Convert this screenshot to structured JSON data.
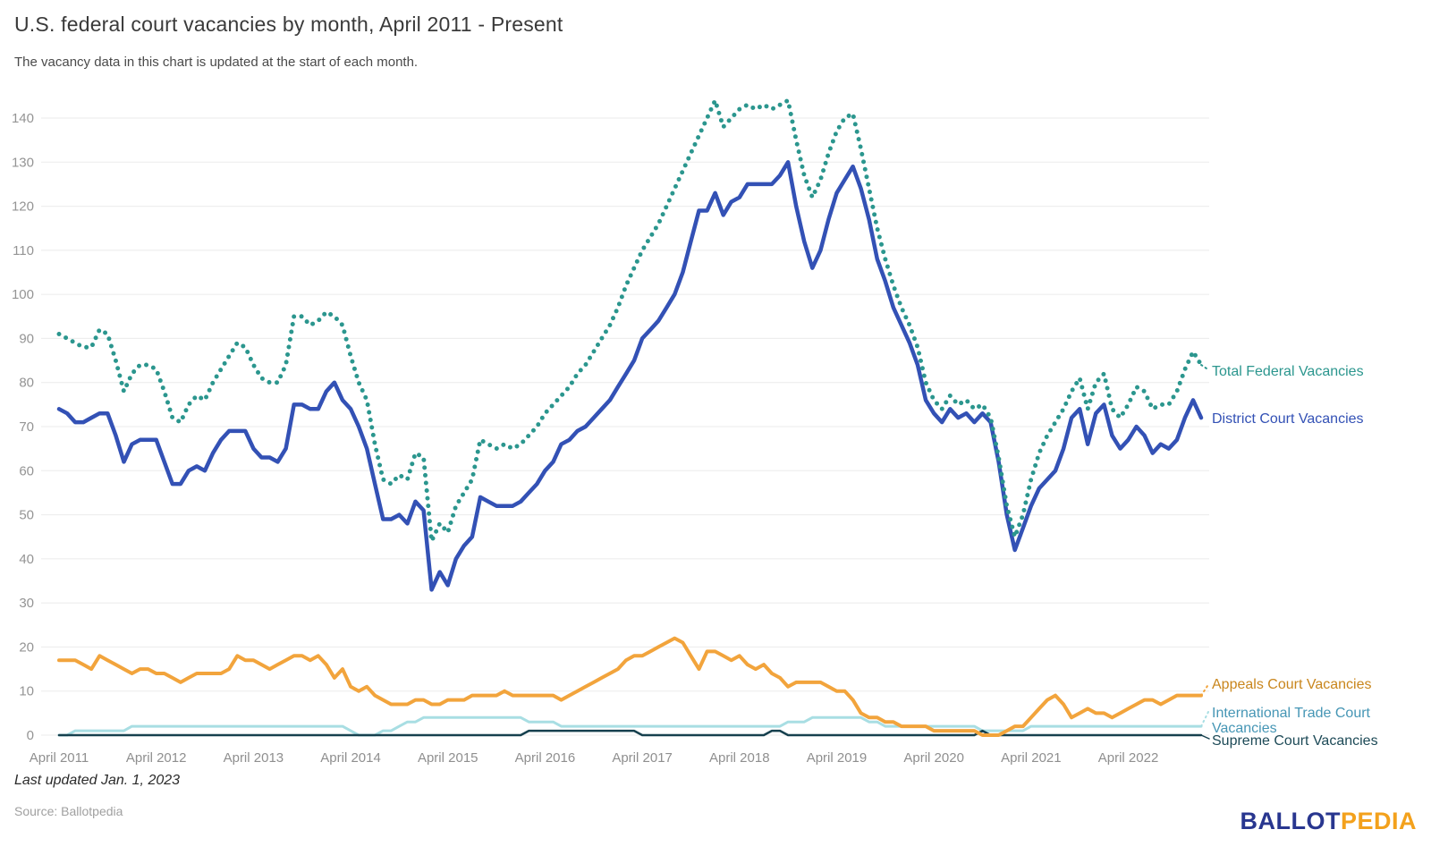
{
  "header": {
    "title": "U.S. federal court vacancies by month, April 2011 - Present",
    "subtitle": "The vacancy data in this chart is updated at the start of each month."
  },
  "footer": {
    "last_updated": "Last updated Jan. 1, 2023",
    "source": "Source: Ballotpedia",
    "logo": {
      "part1": "BALLOT",
      "part2": "PEDIA"
    }
  },
  "chart_data": {
    "type": "line",
    "title": "U.S. federal court vacancies by month, April 2011 - Present",
    "x_start": "April 2011",
    "x_end": "January 2023",
    "x_interval": "monthly",
    "x_tick_labels": [
      "April 2011",
      "April 2012",
      "April 2013",
      "April 2014",
      "April 2015",
      "April 2016",
      "April 2017",
      "April 2018",
      "April 2019",
      "April 2020",
      "April 2021",
      "April 2022"
    ],
    "y_ticks": [
      0,
      10,
      20,
      30,
      40,
      50,
      60,
      70,
      80,
      90,
      100,
      110,
      120,
      130,
      140
    ],
    "ylim": [
      0,
      145
    ],
    "grid": "horizontal",
    "legend_position": "right-of-line-ends",
    "colors": {
      "total": "#2b968e",
      "district": "#3351b5",
      "appeals": "#f2a43c",
      "appeals_label": "#c9861d",
      "itc_line": "#a8dee3",
      "itc_label": "#4696b5",
      "supreme": "#16404e",
      "gridline": "#ebebeb",
      "tick_text": "#949494"
    },
    "series": [
      {
        "name": "Total Federal Vacancies",
        "style": "dotted",
        "color": "#2b968e",
        "values": [
          91,
          90,
          89,
          88,
          88,
          92,
          91,
          85,
          78,
          82,
          84,
          84,
          83,
          78,
          72,
          71,
          75,
          77,
          76,
          80,
          83,
          86,
          89,
          88,
          84,
          81,
          80,
          80,
          84,
          95,
          95,
          93,
          94,
          96,
          95,
          93,
          86,
          80,
          76,
          66,
          58,
          57,
          59,
          58,
          64,
          63,
          44,
          48,
          46,
          52,
          55,
          58,
          67,
          66,
          65,
          66,
          65,
          66,
          68,
          70,
          73,
          75,
          77,
          79,
          82,
          84,
          87,
          90,
          93,
          97,
          102,
          106,
          110,
          113,
          116,
          120,
          124,
          128,
          132,
          136,
          140,
          144,
          138,
          140,
          142,
          143,
          142,
          143,
          142,
          143,
          144,
          135,
          127,
          122,
          126,
          132,
          137,
          140,
          141,
          133,
          124,
          115,
          108,
          102,
          97,
          93,
          88,
          80,
          76,
          74,
          77,
          75,
          76,
          74,
          75,
          72,
          63,
          52,
          45,
          50,
          58,
          64,
          68,
          71,
          74,
          78,
          81,
          74,
          80,
          82,
          74,
          72,
          75,
          79,
          78,
          74,
          75,
          75,
          78,
          83,
          87,
          84
        ]
      },
      {
        "name": "District Court Vacancies",
        "style": "solid",
        "color": "#3351b5",
        "values": [
          74,
          73,
          71,
          71,
          72,
          73,
          73,
          68,
          62,
          66,
          67,
          67,
          67,
          62,
          57,
          57,
          60,
          61,
          60,
          64,
          67,
          69,
          69,
          69,
          65,
          63,
          63,
          62,
          65,
          75,
          75,
          74,
          74,
          78,
          80,
          76,
          74,
          70,
          65,
          57,
          49,
          49,
          50,
          48,
          53,
          51,
          33,
          37,
          34,
          40,
          43,
          45,
          54,
          53,
          52,
          52,
          52,
          53,
          55,
          57,
          60,
          62,
          66,
          67,
          69,
          70,
          72,
          74,
          76,
          79,
          82,
          85,
          90,
          92,
          94,
          97,
          100,
          105,
          112,
          119,
          119,
          123,
          118,
          121,
          122,
          125,
          125,
          125,
          125,
          127,
          130,
          120,
          112,
          106,
          110,
          117,
          123,
          126,
          129,
          124,
          117,
          108,
          103,
          97,
          93,
          89,
          84,
          76,
          73,
          71,
          74,
          72,
          73,
          71,
          73,
          71,
          62,
          50,
          42,
          47,
          52,
          56,
          58,
          60,
          65,
          72,
          74,
          66,
          73,
          75,
          68,
          65,
          67,
          70,
          68,
          64,
          66,
          65,
          67,
          72,
          76,
          72
        ]
      },
      {
        "name": "Appeals Court Vacancies",
        "style": "solid",
        "color": "#f2a43c",
        "values": [
          17,
          17,
          17,
          16,
          15,
          18,
          17,
          16,
          15,
          14,
          15,
          15,
          14,
          14,
          13,
          12,
          13,
          14,
          14,
          14,
          14,
          15,
          18,
          17,
          17,
          16,
          15,
          16,
          17,
          18,
          18,
          17,
          18,
          16,
          13,
          15,
          11,
          10,
          11,
          9,
          8,
          7,
          7,
          7,
          8,
          8,
          7,
          7,
          8,
          8,
          8,
          9,
          9,
          9,
          9,
          10,
          9,
          9,
          9,
          9,
          9,
          9,
          8,
          9,
          10,
          11,
          12,
          13,
          14,
          15,
          17,
          18,
          18,
          19,
          20,
          21,
          22,
          21,
          18,
          15,
          19,
          19,
          18,
          17,
          18,
          16,
          15,
          16,
          14,
          13,
          11,
          12,
          12,
          12,
          12,
          11,
          10,
          10,
          8,
          5,
          4,
          4,
          3,
          3,
          2,
          2,
          2,
          2,
          1,
          1,
          1,
          1,
          1,
          1,
          0,
          0,
          0,
          1,
          2,
          2,
          4,
          6,
          8,
          9,
          7,
          4,
          5,
          6,
          5,
          5,
          4,
          5,
          6,
          7,
          8,
          8,
          7,
          8,
          9,
          9,
          9,
          9
        ]
      },
      {
        "name": "International Trade Court Vacancies",
        "style": "solid",
        "color": "#a8dee3",
        "values": [
          0,
          0,
          1,
          1,
          1,
          1,
          1,
          1,
          1,
          2,
          2,
          2,
          2,
          2,
          2,
          2,
          2,
          2,
          2,
          2,
          2,
          2,
          2,
          2,
          2,
          2,
          2,
          2,
          2,
          2,
          2,
          2,
          2,
          2,
          2,
          2,
          1,
          0,
          0,
          0,
          1,
          1,
          2,
          3,
          3,
          4,
          4,
          4,
          4,
          4,
          4,
          4,
          4,
          4,
          4,
          4,
          4,
          4,
          3,
          3,
          3,
          3,
          2,
          2,
          2,
          2,
          2,
          2,
          2,
          2,
          2,
          2,
          2,
          2,
          2,
          2,
          2,
          2,
          2,
          2,
          2,
          2,
          2,
          2,
          2,
          2,
          2,
          2,
          2,
          2,
          3,
          3,
          3,
          4,
          4,
          4,
          4,
          4,
          4,
          4,
          3,
          3,
          2,
          2,
          2,
          2,
          2,
          2,
          2,
          2,
          2,
          2,
          2,
          2,
          1,
          1,
          1,
          1,
          1,
          1,
          2,
          2,
          2,
          2,
          2,
          2,
          2,
          2,
          2,
          2,
          2,
          2,
          2,
          2,
          2,
          2,
          2,
          2,
          2,
          2,
          2,
          2
        ]
      },
      {
        "name": "Supreme Court Vacancies",
        "style": "solid",
        "color": "#16404e",
        "values": [
          0,
          0,
          0,
          0,
          0,
          0,
          0,
          0,
          0,
          0,
          0,
          0,
          0,
          0,
          0,
          0,
          0,
          0,
          0,
          0,
          0,
          0,
          0,
          0,
          0,
          0,
          0,
          0,
          0,
          0,
          0,
          0,
          0,
          0,
          0,
          0,
          0,
          0,
          0,
          0,
          0,
          0,
          0,
          0,
          0,
          0,
          0,
          0,
          0,
          0,
          0,
          0,
          0,
          0,
          0,
          0,
          0,
          0,
          1,
          1,
          1,
          1,
          1,
          1,
          1,
          1,
          1,
          1,
          1,
          1,
          1,
          1,
          0,
          0,
          0,
          0,
          0,
          0,
          0,
          0,
          0,
          0,
          0,
          0,
          0,
          0,
          0,
          0,
          1,
          1,
          0,
          0,
          0,
          0,
          0,
          0,
          0,
          0,
          0,
          0,
          0,
          0,
          0,
          0,
          0,
          0,
          0,
          0,
          0,
          0,
          0,
          0,
          0,
          0,
          1,
          0,
          0,
          0,
          0,
          0,
          0,
          0,
          0,
          0,
          0,
          0,
          0,
          0,
          0,
          0,
          0,
          0,
          0,
          0,
          0,
          0,
          0,
          0,
          0,
          0,
          0,
          0
        ]
      }
    ]
  }
}
